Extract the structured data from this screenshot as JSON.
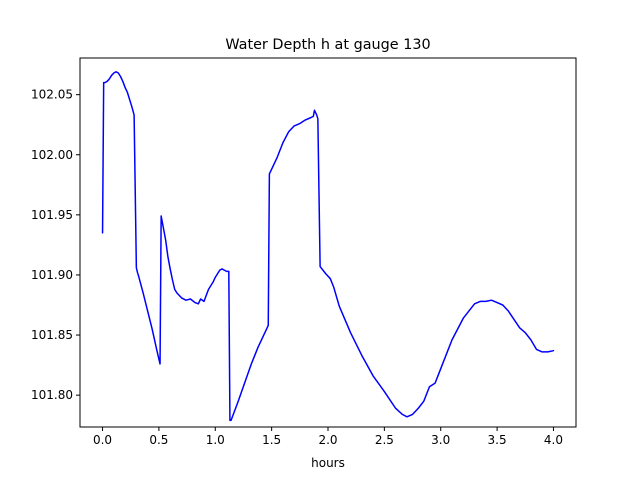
{
  "chart_data": {
    "type": "line",
    "title": "Water Depth h at gauge 130",
    "xlabel": "hours",
    "ylabel": "",
    "xlim": [
      -0.2,
      4.2
    ],
    "ylim": [
      101.7735,
      102.0805
    ],
    "xticks": [
      0.0,
      0.5,
      1.0,
      1.5,
      2.0,
      2.5,
      3.0,
      3.5,
      4.0
    ],
    "xtick_labels": [
      "0.0",
      "0.5",
      "1.0",
      "1.5",
      "2.0",
      "2.5",
      "3.0",
      "3.5",
      "4.0"
    ],
    "yticks": [
      101.8,
      101.85,
      101.9,
      101.95,
      102.0,
      102.05
    ],
    "ytick_labels": [
      "101.80",
      "101.85",
      "101.90",
      "101.95",
      "102.00",
      "102.05"
    ],
    "grid": false,
    "legend": "none",
    "series": [
      {
        "color": "#0000ff",
        "x": [
          0.0,
          0.01,
          0.02,
          0.04,
          0.06,
          0.08,
          0.1,
          0.12,
          0.14,
          0.16,
          0.18,
          0.2,
          0.22,
          0.24,
          0.26,
          0.28,
          0.3,
          0.31,
          0.32,
          0.36,
          0.4,
          0.44,
          0.48,
          0.51,
          0.52,
          0.54,
          0.56,
          0.58,
          0.6,
          0.62,
          0.64,
          0.66,
          0.7,
          0.74,
          0.78,
          0.82,
          0.85,
          0.87,
          0.9,
          0.92,
          0.94,
          0.96,
          0.98,
          1.0,
          1.02,
          1.04,
          1.06,
          1.08,
          1.1,
          1.12,
          1.13,
          1.14,
          1.2,
          1.26,
          1.32,
          1.38,
          1.44,
          1.47,
          1.48,
          1.5,
          1.55,
          1.6,
          1.65,
          1.7,
          1.75,
          1.8,
          1.85,
          1.87,
          1.88,
          1.9,
          1.91,
          1.93,
          1.98,
          2.02,
          2.05,
          2.1,
          2.2,
          2.3,
          2.4,
          2.5,
          2.6,
          2.66,
          2.7,
          2.75,
          2.8,
          2.85,
          2.9,
          2.95,
          3.0,
          3.1,
          3.2,
          3.3,
          3.35,
          3.4,
          3.45,
          3.5,
          3.55,
          3.6,
          3.65,
          3.7,
          3.75,
          3.8,
          3.85,
          3.9,
          3.95,
          4.0
        ],
        "y": [
          101.935,
          102.06,
          102.06,
          102.061,
          102.063,
          102.066,
          102.068,
          102.069,
          102.068,
          102.065,
          102.061,
          102.056,
          102.052,
          102.046,
          102.04,
          102.033,
          101.906,
          101.902,
          101.899,
          101.885,
          101.87,
          101.855,
          101.838,
          101.826,
          101.949,
          101.939,
          101.929,
          101.915,
          101.905,
          101.896,
          101.888,
          101.885,
          101.881,
          101.879,
          101.88,
          101.877,
          101.876,
          101.88,
          101.878,
          101.883,
          101.888,
          101.891,
          101.894,
          101.898,
          101.901,
          101.904,
          101.905,
          101.904,
          101.903,
          101.903,
          101.779,
          101.779,
          101.794,
          101.81,
          101.826,
          101.84,
          101.852,
          101.858,
          101.984,
          101.988,
          101.998,
          102.01,
          102.019,
          102.024,
          102.026,
          102.029,
          102.031,
          102.032,
          102.037,
          102.033,
          102.03,
          101.907,
          101.901,
          101.897,
          101.89,
          101.874,
          101.852,
          101.833,
          101.816,
          101.803,
          101.789,
          101.784,
          101.782,
          101.784,
          101.789,
          101.795,
          101.807,
          101.81,
          101.822,
          101.846,
          101.864,
          101.876,
          101.878,
          101.878,
          101.879,
          101.877,
          101.875,
          101.87,
          101.863,
          101.856,
          101.852,
          101.846,
          101.838,
          101.836,
          101.836,
          101.837
        ]
      }
    ]
  }
}
